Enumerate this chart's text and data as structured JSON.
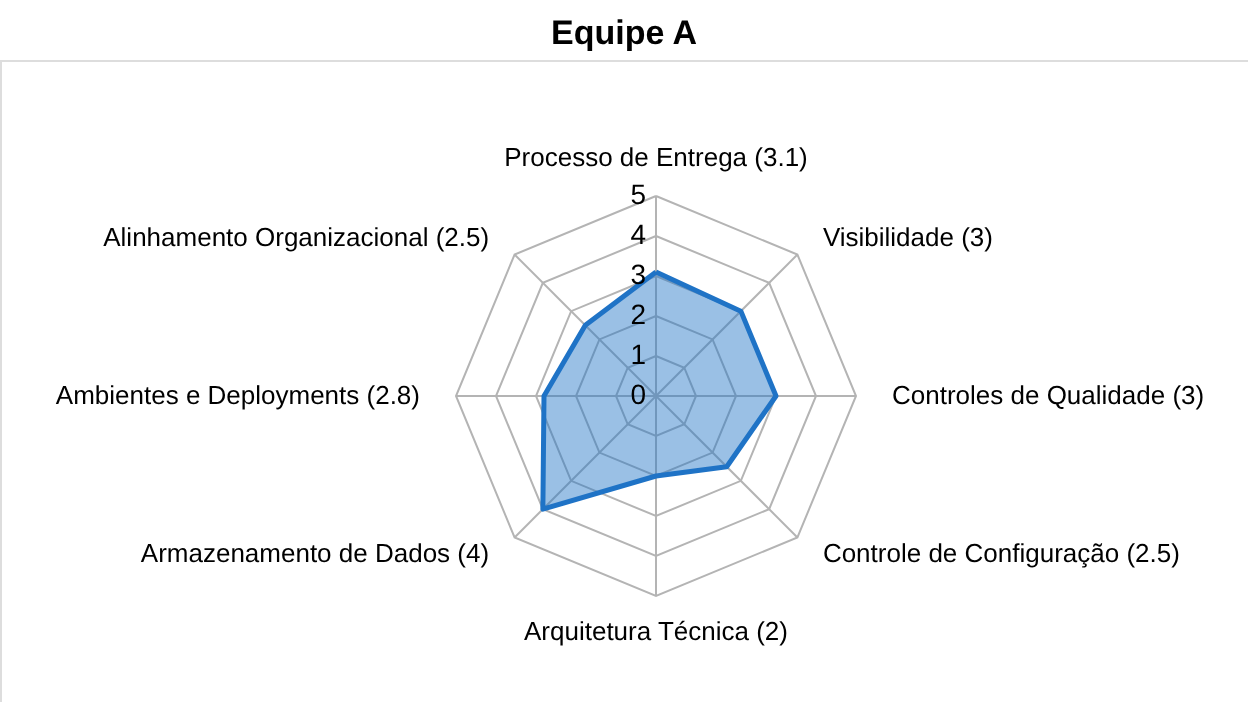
{
  "chart_data": {
    "type": "radar",
    "title": "Equipe A",
    "categories": [
      "Processo de Entrega (3.1)",
      "Visibilidade (3)",
      "Controles de Qualidade (3)",
      "Controle de Configuração (2.5)",
      "Arquitetura Técnica (2)",
      "Armazenamento de Dados (4)",
      "Ambientes e Deployments (2.8)",
      "Alinhamento Organizacional (2.5)"
    ],
    "series": [
      {
        "color": "#1f73c6",
        "values": [
          3.1,
          3,
          3,
          2.5,
          2,
          4,
          2.8,
          2.5
        ]
      }
    ],
    "ylim": [
      0,
      5
    ],
    "yticks": [
      0,
      1,
      2,
      3,
      4,
      5
    ],
    "grid": true
  }
}
